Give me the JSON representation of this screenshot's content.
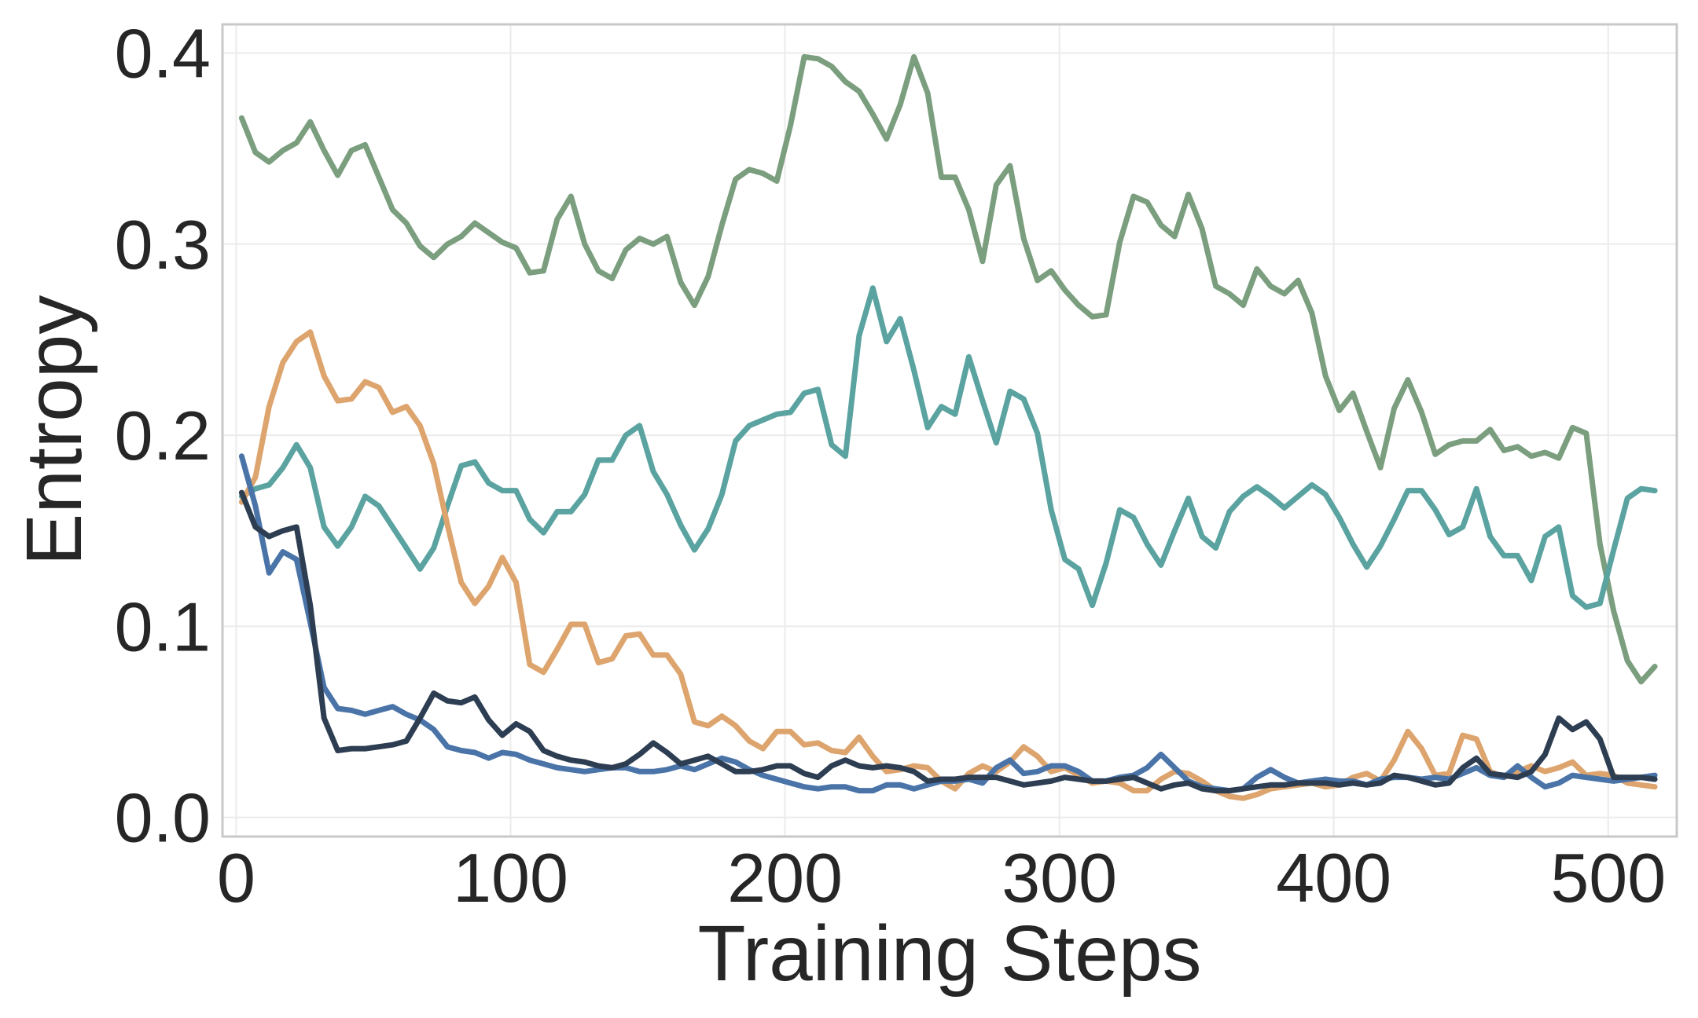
{
  "chart_data": {
    "type": "line",
    "title": "",
    "xlabel": "Training Steps",
    "ylabel": "Entropy",
    "xlim": [
      -5,
      525
    ],
    "ylim": [
      -0.01,
      0.415
    ],
    "xticks": [
      0,
      100,
      200,
      300,
      400,
      500
    ],
    "xtick_labels": [
      "0",
      "100",
      "200",
      "300",
      "400",
      "500"
    ],
    "yticks": [
      0.0,
      0.1,
      0.2,
      0.3,
      0.4
    ],
    "ytick_labels": [
      "0.0",
      "0.1",
      "0.2",
      "0.3",
      "0.4"
    ],
    "grid": true,
    "legend": "none",
    "series": [
      {
        "color": "#7a9e7e",
        "x": [
          2,
          7,
          12,
          17,
          22,
          27,
          32,
          37,
          42,
          47,
          52,
          57,
          62,
          67,
          72,
          77,
          82,
          87,
          92,
          97,
          102,
          107,
          112,
          117,
          122,
          127,
          132,
          137,
          142,
          147,
          152,
          157,
          162,
          167,
          172,
          177,
          182,
          187,
          192,
          197,
          202,
          207,
          212,
          217,
          222,
          227,
          232,
          237,
          242,
          247,
          252,
          257,
          262,
          267,
          272,
          277,
          282,
          287,
          292,
          297,
          302,
          307,
          312,
          317,
          322,
          327,
          332,
          337,
          342,
          347,
          352,
          357,
          362,
          367,
          372,
          377,
          382,
          387,
          392,
          397,
          402,
          407,
          412,
          417,
          422,
          427,
          432,
          437,
          442,
          447,
          452,
          457,
          462,
          467,
          472,
          477,
          482,
          487,
          492,
          497,
          502,
          507,
          512,
          517
        ],
        "values": [
          0.366,
          0.348,
          0.343,
          0.349,
          0.353,
          0.364,
          0.349,
          0.336,
          0.349,
          0.352,
          0.335,
          0.318,
          0.311,
          0.299,
          0.293,
          0.3,
          0.304,
          0.311,
          0.306,
          0.301,
          0.298,
          0.285,
          0.286,
          0.313,
          0.325,
          0.3,
          0.286,
          0.282,
          0.297,
          0.303,
          0.3,
          0.304,
          0.28,
          0.268,
          0.283,
          0.31,
          0.334,
          0.339,
          0.337,
          0.333,
          0.362,
          0.398,
          0.397,
          0.393,
          0.385,
          0.38,
          0.368,
          0.355,
          0.373,
          0.398,
          0.379,
          0.335,
          0.335,
          0.318,
          0.291,
          0.331,
          0.341,
          0.303,
          0.281,
          0.286,
          0.276,
          0.268,
          0.262,
          0.263,
          0.301,
          0.325,
          0.322,
          0.31,
          0.304,
          0.326,
          0.308,
          0.278,
          0.274,
          0.268,
          0.287,
          0.278,
          0.274,
          0.281,
          0.264,
          0.231,
          0.213,
          0.222,
          0.202,
          0.183,
          0.214,
          0.229,
          0.212,
          0.19,
          0.195,
          0.197,
          0.197,
          0.203,
          0.192,
          0.194,
          0.189,
          0.191,
          0.188,
          0.204,
          0.201,
          0.143,
          0.108,
          0.082,
          0.071,
          0.079
        ]
      },
      {
        "color": "#5aa3a0",
        "x": [
          2,
          7,
          12,
          17,
          22,
          27,
          32,
          37,
          42,
          47,
          52,
          57,
          62,
          67,
          72,
          77,
          82,
          87,
          92,
          97,
          102,
          107,
          112,
          117,
          122,
          127,
          132,
          137,
          142,
          147,
          152,
          157,
          162,
          167,
          172,
          177,
          182,
          187,
          192,
          197,
          202,
          207,
          212,
          217,
          222,
          227,
          232,
          237,
          242,
          247,
          252,
          257,
          262,
          267,
          272,
          277,
          282,
          287,
          292,
          297,
          302,
          307,
          312,
          317,
          322,
          327,
          332,
          337,
          342,
          347,
          352,
          357,
          362,
          367,
          372,
          377,
          382,
          387,
          392,
          397,
          402,
          407,
          412,
          417,
          422,
          427,
          432,
          437,
          442,
          447,
          452,
          457,
          462,
          467,
          472,
          477,
          482,
          487,
          492,
          497,
          502,
          507,
          512,
          517
        ],
        "values": [
          0.168,
          0.172,
          0.174,
          0.183,
          0.195,
          0.183,
          0.152,
          0.142,
          0.152,
          0.168,
          0.163,
          0.152,
          0.141,
          0.13,
          0.141,
          0.163,
          0.184,
          0.186,
          0.175,
          0.171,
          0.171,
          0.156,
          0.149,
          0.16,
          0.16,
          0.169,
          0.187,
          0.187,
          0.2,
          0.205,
          0.181,
          0.169,
          0.153,
          0.14,
          0.151,
          0.169,
          0.197,
          0.205,
          0.208,
          0.211,
          0.212,
          0.222,
          0.224,
          0.195,
          0.189,
          0.252,
          0.277,
          0.249,
          0.261,
          0.234,
          0.204,
          0.215,
          0.211,
          0.241,
          0.218,
          0.196,
          0.223,
          0.219,
          0.201,
          0.161,
          0.135,
          0.13,
          0.111,
          0.133,
          0.161,
          0.157,
          0.143,
          0.132,
          0.15,
          0.167,
          0.147,
          0.141,
          0.16,
          0.168,
          0.173,
          0.168,
          0.162,
          0.168,
          0.174,
          0.169,
          0.157,
          0.143,
          0.131,
          0.142,
          0.156,
          0.171,
          0.171,
          0.161,
          0.148,
          0.152,
          0.172,
          0.147,
          0.137,
          0.137,
          0.124,
          0.147,
          0.152,
          0.116,
          0.11,
          0.112,
          0.14,
          0.167,
          0.172,
          0.171
        ]
      },
      {
        "color": "#dda46d",
        "x": [
          2,
          7,
          12,
          17,
          22,
          27,
          32,
          37,
          42,
          47,
          52,
          57,
          62,
          67,
          72,
          77,
          82,
          87,
          92,
          97,
          102,
          107,
          112,
          117,
          122,
          127,
          132,
          137,
          142,
          147,
          152,
          157,
          162,
          167,
          172,
          177,
          182,
          187,
          192,
          197,
          202,
          207,
          212,
          217,
          222,
          227,
          232,
          237,
          242,
          247,
          252,
          257,
          262,
          267,
          272,
          277,
          282,
          287,
          292,
          297,
          302,
          307,
          312,
          317,
          322,
          327,
          332,
          337,
          342,
          347,
          352,
          357,
          362,
          367,
          372,
          377,
          382,
          387,
          392,
          397,
          402,
          407,
          412,
          417,
          422,
          427,
          432,
          437,
          442,
          447,
          452,
          457,
          462,
          467,
          472,
          477,
          482,
          487,
          492,
          497,
          502,
          507,
          512,
          517
        ],
        "values": [
          0.165,
          0.178,
          0.215,
          0.238,
          0.249,
          0.254,
          0.231,
          0.218,
          0.219,
          0.228,
          0.225,
          0.212,
          0.215,
          0.205,
          0.185,
          0.153,
          0.123,
          0.112,
          0.121,
          0.136,
          0.123,
          0.08,
          0.076,
          0.088,
          0.101,
          0.101,
          0.081,
          0.083,
          0.095,
          0.096,
          0.085,
          0.085,
          0.075,
          0.05,
          0.048,
          0.053,
          0.048,
          0.04,
          0.036,
          0.045,
          0.045,
          0.038,
          0.039,
          0.035,
          0.034,
          0.042,
          0.032,
          0.024,
          0.025,
          0.027,
          0.026,
          0.019,
          0.015,
          0.023,
          0.027,
          0.024,
          0.029,
          0.037,
          0.032,
          0.024,
          0.026,
          0.022,
          0.018,
          0.019,
          0.018,
          0.014,
          0.014,
          0.02,
          0.024,
          0.023,
          0.019,
          0.014,
          0.011,
          0.01,
          0.012,
          0.015,
          0.016,
          0.017,
          0.018,
          0.016,
          0.017,
          0.021,
          0.023,
          0.019,
          0.03,
          0.045,
          0.036,
          0.022,
          0.023,
          0.043,
          0.041,
          0.024,
          0.021,
          0.024,
          0.027,
          0.024,
          0.026,
          0.029,
          0.022,
          0.023,
          0.022,
          0.018,
          0.017,
          0.016
        ]
      },
      {
        "color": "#4a74a8",
        "x": [
          2,
          7,
          12,
          17,
          22,
          27,
          32,
          37,
          42,
          47,
          52,
          57,
          62,
          67,
          72,
          77,
          82,
          87,
          92,
          97,
          102,
          107,
          112,
          117,
          122,
          127,
          132,
          137,
          142,
          147,
          152,
          157,
          162,
          167,
          172,
          177,
          182,
          187,
          192,
          197,
          202,
          207,
          212,
          217,
          222,
          227,
          232,
          237,
          242,
          247,
          252,
          257,
          262,
          267,
          272,
          277,
          282,
          287,
          292,
          297,
          302,
          307,
          312,
          317,
          322,
          327,
          332,
          337,
          342,
          347,
          352,
          357,
          362,
          367,
          372,
          377,
          382,
          387,
          392,
          397,
          402,
          407,
          412,
          417,
          422,
          427,
          432,
          437,
          442,
          447,
          452,
          457,
          462,
          467,
          472,
          477,
          482,
          487,
          492,
          497,
          502,
          507,
          512,
          517
        ],
        "values": [
          0.189,
          0.163,
          0.128,
          0.139,
          0.135,
          0.102,
          0.068,
          0.057,
          0.056,
          0.054,
          0.056,
          0.058,
          0.054,
          0.051,
          0.046,
          0.037,
          0.035,
          0.034,
          0.031,
          0.034,
          0.033,
          0.03,
          0.028,
          0.026,
          0.025,
          0.024,
          0.025,
          0.026,
          0.026,
          0.024,
          0.024,
          0.025,
          0.027,
          0.025,
          0.028,
          0.031,
          0.029,
          0.025,
          0.022,
          0.02,
          0.018,
          0.016,
          0.015,
          0.016,
          0.016,
          0.014,
          0.014,
          0.017,
          0.017,
          0.015,
          0.017,
          0.019,
          0.019,
          0.02,
          0.018,
          0.026,
          0.03,
          0.023,
          0.024,
          0.027,
          0.027,
          0.024,
          0.019,
          0.019,
          0.021,
          0.022,
          0.026,
          0.033,
          0.026,
          0.019,
          0.016,
          0.015,
          0.014,
          0.015,
          0.021,
          0.025,
          0.021,
          0.018,
          0.019,
          0.02,
          0.019,
          0.019,
          0.017,
          0.02,
          0.021,
          0.021,
          0.02,
          0.021,
          0.02,
          0.023,
          0.026,
          0.022,
          0.021,
          0.027,
          0.021,
          0.016,
          0.018,
          0.022,
          0.021,
          0.02,
          0.019,
          0.02,
          0.021,
          0.022
        ]
      },
      {
        "color": "#2d3d52",
        "x": [
          2,
          7,
          12,
          17,
          22,
          27,
          32,
          37,
          42,
          47,
          52,
          57,
          62,
          67,
          72,
          77,
          82,
          87,
          92,
          97,
          102,
          107,
          112,
          117,
          122,
          127,
          132,
          137,
          142,
          147,
          152,
          157,
          162,
          167,
          172,
          177,
          182,
          187,
          192,
          197,
          202,
          207,
          212,
          217,
          222,
          227,
          232,
          237,
          242,
          247,
          252,
          257,
          262,
          267,
          272,
          277,
          282,
          287,
          292,
          297,
          302,
          307,
          312,
          317,
          322,
          327,
          332,
          337,
          342,
          347,
          352,
          357,
          362,
          367,
          372,
          377,
          382,
          387,
          392,
          397,
          402,
          407,
          412,
          417,
          422,
          427,
          432,
          437,
          442,
          447,
          452,
          457,
          462,
          467,
          472,
          477,
          482,
          487,
          492,
          497,
          502,
          507,
          512,
          517
        ],
        "values": [
          0.17,
          0.152,
          0.147,
          0.15,
          0.152,
          0.111,
          0.052,
          0.035,
          0.036,
          0.036,
          0.037,
          0.038,
          0.04,
          0.052,
          0.065,
          0.061,
          0.06,
          0.063,
          0.051,
          0.043,
          0.049,
          0.045,
          0.035,
          0.032,
          0.03,
          0.029,
          0.027,
          0.026,
          0.028,
          0.033,
          0.039,
          0.034,
          0.028,
          0.03,
          0.032,
          0.028,
          0.024,
          0.024,
          0.025,
          0.027,
          0.027,
          0.023,
          0.021,
          0.027,
          0.03,
          0.027,
          0.026,
          0.027,
          0.026,
          0.024,
          0.019,
          0.02,
          0.02,
          0.021,
          0.021,
          0.021,
          0.019,
          0.017,
          0.018,
          0.019,
          0.021,
          0.02,
          0.019,
          0.019,
          0.02,
          0.021,
          0.018,
          0.015,
          0.017,
          0.018,
          0.015,
          0.014,
          0.014,
          0.015,
          0.016,
          0.017,
          0.017,
          0.018,
          0.018,
          0.018,
          0.017,
          0.018,
          0.017,
          0.018,
          0.022,
          0.021,
          0.019,
          0.017,
          0.018,
          0.026,
          0.031,
          0.023,
          0.022,
          0.021,
          0.024,
          0.033,
          0.052,
          0.046,
          0.05,
          0.041,
          0.021,
          0.021,
          0.021,
          0.02
        ]
      }
    ]
  }
}
